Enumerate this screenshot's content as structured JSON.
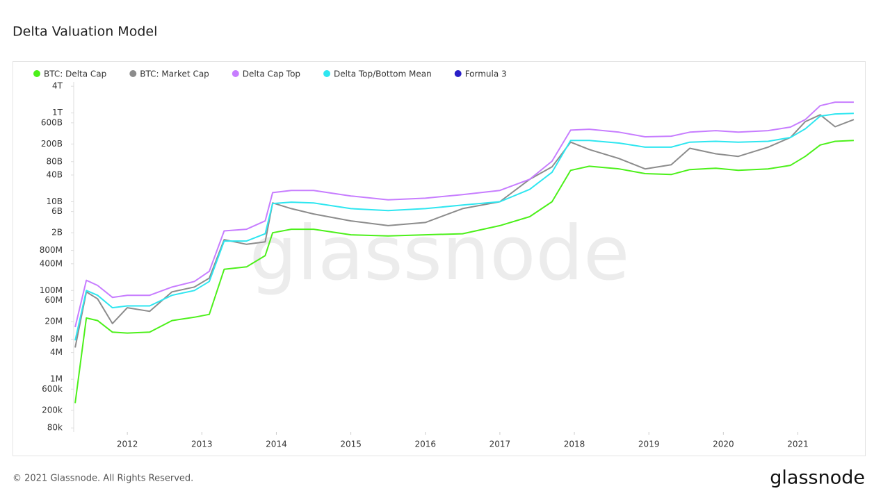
{
  "chart_data": {
    "type": "line",
    "title": "Delta Valuation Model",
    "watermark": "glassnode",
    "footer": "© 2021 Glassnode. All Rights Reserved.",
    "logo": "glassnode",
    "yscale": "log",
    "grid": false,
    "xlim": [
      2011.28,
      2021.77
    ],
    "xticks": [
      2012,
      2013,
      2014,
      2015,
      2016,
      2017,
      2018,
      2019,
      2020,
      2021
    ],
    "ylim": [
      65000,
      5000000000000.0
    ],
    "yticks": [
      {
        "value": 4000000000000.0,
        "label": "4T"
      },
      {
        "value": 1000000000000.0,
        "label": "1T"
      },
      {
        "value": 600000000000.0,
        "label": "600B"
      },
      {
        "value": 200000000000.0,
        "label": "200B"
      },
      {
        "value": 80000000000.0,
        "label": "80B"
      },
      {
        "value": 40000000000.0,
        "label": "40B"
      },
      {
        "value": 10000000000.0,
        "label": "10B"
      },
      {
        "value": 6000000000.0,
        "label": "6B"
      },
      {
        "value": 2000000000.0,
        "label": "2B"
      },
      {
        "value": 800000000.0,
        "label": "800M"
      },
      {
        "value": 400000000.0,
        "label": "400M"
      },
      {
        "value": 100000000.0,
        "label": "100M"
      },
      {
        "value": 60000000.0,
        "label": "60M"
      },
      {
        "value": 20000000.0,
        "label": "20M"
      },
      {
        "value": 8000000.0,
        "label": "8M"
      },
      {
        "value": 4000000.0,
        "label": "4M"
      },
      {
        "value": 1000000.0,
        "label": "1M"
      },
      {
        "value": 600000.0,
        "label": "600k"
      },
      {
        "value": 200000.0,
        "label": "200k"
      },
      {
        "value": 80000.0,
        "label": "80k"
      }
    ],
    "x": [
      2011.3,
      2011.45,
      2011.6,
      2011.8,
      2012.0,
      2012.3,
      2012.6,
      2012.9,
      2013.1,
      2013.3,
      2013.6,
      2013.85,
      2013.95,
      2014.2,
      2014.5,
      2015.0,
      2015.5,
      2016.0,
      2016.5,
      2017.0,
      2017.4,
      2017.7,
      2017.95,
      2018.2,
      2018.6,
      2018.95,
      2019.3,
      2019.55,
      2019.9,
      2020.2,
      2020.6,
      2020.9,
      2021.1,
      2021.3,
      2021.5,
      2021.75
    ],
    "series": [
      {
        "name": "BTC: Delta Cap",
        "color": "#4cf01a",
        "values": [
          290000.0,
          24000000.0,
          21000000.0,
          11500000.0,
          11000000.0,
          11500000.0,
          21000000.0,
          25000000.0,
          29000000.0,
          300000000.0,
          340000000.0,
          610000000.0,
          2000000000.0,
          2400000000.0,
          2400000000.0,
          1800000000.0,
          1700000000.0,
          1800000000.0,
          1900000000.0,
          2900000000.0,
          4600000000.0,
          10000000000.0,
          51000000000.0,
          63000000000.0,
          55000000000.0,
          43000000000.0,
          41000000000.0,
          53000000000.0,
          57000000000.0,
          51000000000.0,
          55000000000.0,
          66000000000.0,
          105000000000.0,
          190000000000.0,
          230000000000.0,
          240000000000.0
        ]
      },
      {
        "name": "BTC: Market Cap",
        "color": "#8c8c8c",
        "values": [
          5200000.0,
          93000000.0,
          65000000.0,
          18000000.0,
          41000000.0,
          34000000.0,
          93000000.0,
          120000000.0,
          190000000.0,
          1400000000.0,
          1100000000.0,
          1250000000.0,
          9400000000.0,
          7000000000.0,
          5300000000.0,
          3700000000.0,
          2900000000.0,
          3400000000.0,
          7000000000.0,
          10000000000.0,
          32000000000.0,
          61000000000.0,
          220000000000.0,
          150000000000.0,
          94000000000.0,
          55000000000.0,
          68000000000.0,
          160000000000.0,
          120000000000.0,
          105000000000.0,
          170000000000.0,
          280000000000.0,
          640000000000.0,
          910000000000.0,
          490000000000.0,
          710000000000.0
        ]
      },
      {
        "name": "Delta Cap Top",
        "color": "#c77dff",
        "values": [
          15000000.0,
          170000000.0,
          130000000.0,
          70000000.0,
          78000000.0,
          78000000.0,
          120000000.0,
          160000000.0,
          270000000.0,
          2200000000.0,
          2400000000.0,
          3700000000.0,
          16000000000.0,
          18000000000.0,
          18000000000.0,
          13500000000.0,
          11000000000.0,
          12000000000.0,
          14500000000.0,
          18000000000.0,
          32000000000.0,
          82000000000.0,
          410000000000.0,
          430000000000.0,
          370000000000.0,
          290000000000.0,
          300000000000.0,
          370000000000.0,
          400000000000.0,
          370000000000.0,
          400000000000.0,
          480000000000.0,
          710000000000.0,
          1460000000000.0,
          1750000000000.0,
          1750000000000.0
        ]
      },
      {
        "name": "Delta Top/Bottom Mean",
        "color": "#2ee6f0",
        "values": [
          7500000.0,
          100000000.0,
          78000000.0,
          41000000.0,
          45000000.0,
          45000000.0,
          78000000.0,
          100000000.0,
          160000000.0,
          1300000000.0,
          1300000000.0,
          1900000000.0,
          9100000000.0,
          9800000000.0,
          9400000000.0,
          7000000000.0,
          6300000000.0,
          7000000000.0,
          8400000000.0,
          10000000000.0,
          19000000000.0,
          46000000000.0,
          240000000000.0,
          240000000000.0,
          210000000000.0,
          170000000000.0,
          170000000000.0,
          220000000000.0,
          230000000000.0,
          220000000000.0,
          230000000000.0,
          280000000000.0,
          440000000000.0,
          850000000000.0,
          950000000000.0,
          980000000000.0
        ]
      },
      {
        "name": "Formula 3",
        "color": "#2a1fc7",
        "hidden": true,
        "values": [
          null,
          null,
          null,
          null,
          null,
          null,
          null,
          null,
          null,
          null,
          null,
          null,
          null,
          null,
          null,
          null,
          null,
          null,
          null,
          null,
          null,
          null,
          null,
          null,
          null,
          null,
          null,
          null,
          null,
          null,
          null,
          null,
          null,
          null,
          null,
          null
        ]
      }
    ]
  }
}
